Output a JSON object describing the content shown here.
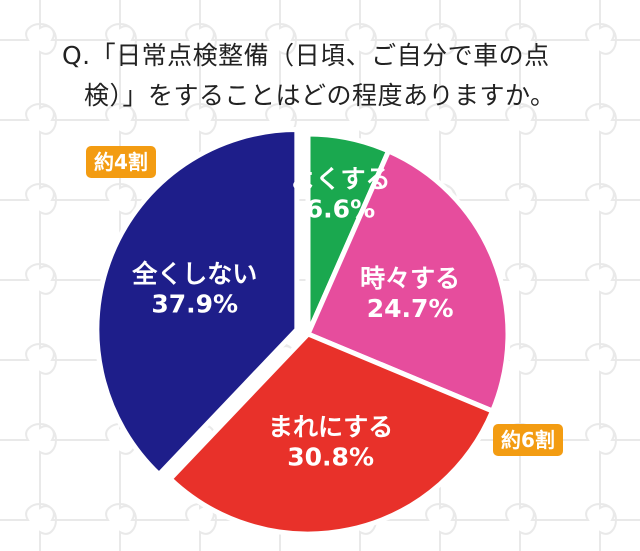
{
  "question": {
    "line1": "Q.「日常点検整備（日頃、ご自分で車の点",
    "line2": "検）」をすることはどの程度ありますか。"
  },
  "badges": {
    "left": "約4割",
    "right": "約6割"
  },
  "colors": {
    "often": "#1aa84f",
    "sometimes": "#e64d9d",
    "rarely": "#e8312a",
    "never": "#1e1e8a",
    "badge": "#f39c12"
  },
  "chart_data": {
    "type": "pie",
    "categories": [
      "よくする",
      "時々する",
      "まれにする",
      "全くしない"
    ],
    "values": [
      6.6,
      24.7,
      30.8,
      37.9
    ],
    "value_labels": [
      "6.6%",
      "24.7%",
      "30.8%",
      "37.9%"
    ],
    "unit": "%",
    "start_angle": "12 o'clock",
    "direction": "clockwise",
    "exploded_slice": "全くしない"
  }
}
